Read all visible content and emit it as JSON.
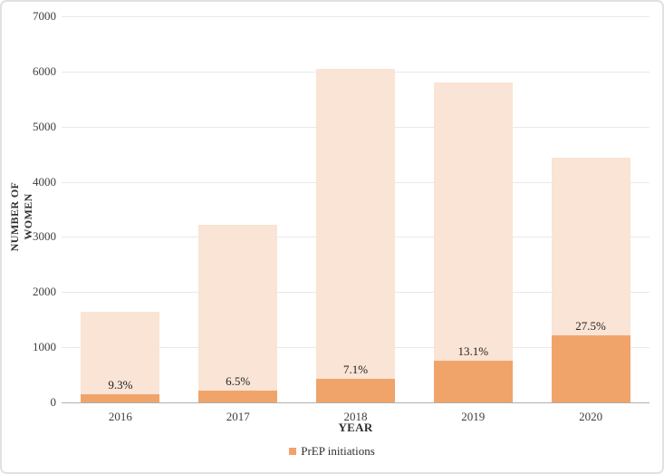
{
  "chart_data": {
    "type": "bar",
    "subtype": "overlay-stacked-column",
    "categories": [
      "2016",
      "2017",
      "2018",
      "2019",
      "2020"
    ],
    "series": [
      {
        "name": "Number of women (total bar)",
        "values": [
          1650,
          3220,
          6050,
          5800,
          4440
        ],
        "color": "#fae4d5"
      },
      {
        "name": "PrEP initiations",
        "values": [
          153,
          209,
          430,
          760,
          1221
        ],
        "color": "#f0a46a",
        "data_labels": [
          "9.3%",
          "6.5%",
          "7.1%",
          "13.1%",
          "27.5%"
        ]
      }
    ],
    "title": "",
    "xlabel": "YEAR",
    "ylabel": "NUMBER OF WOMEN",
    "ylim": [
      0,
      7000
    ],
    "yticks": [
      0,
      1000,
      2000,
      3000,
      4000,
      5000,
      6000,
      7000
    ],
    "grid": true,
    "legend_position": "bottom"
  },
  "axes": {
    "x_title": "YEAR",
    "y_title": "NUMBER OF WOMEN"
  },
  "legend": {
    "label": "PrEP initiations",
    "marker_color": "#f0a46a"
  },
  "colors": {
    "bar_light": "#fae4d5",
    "bar_orange": "#f0a46a",
    "gridline": "#e9e9e9",
    "axis_line": "#afafaf",
    "text": "#3d3d3d",
    "frame_border": "#e2e2e2"
  }
}
